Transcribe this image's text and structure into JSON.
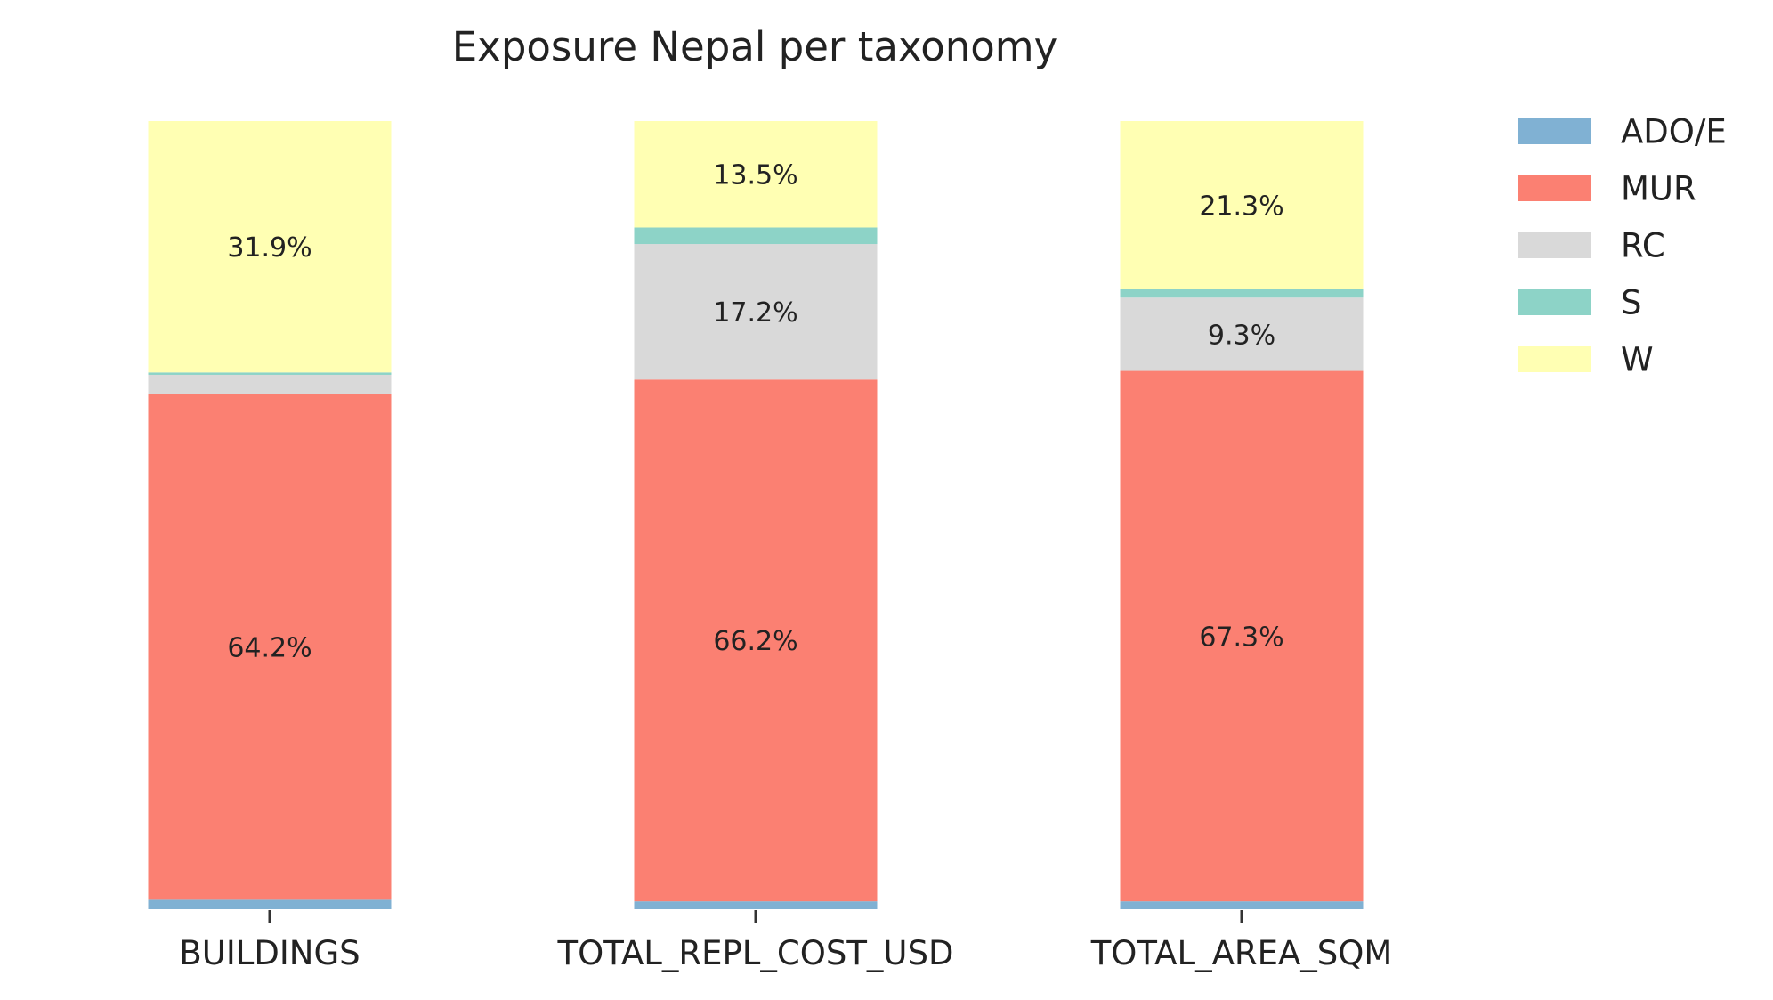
{
  "chart_data": {
    "type": "bar",
    "stacked": true,
    "normalized": true,
    "title": "Exposure Nepal per taxonomy",
    "xlabel": "",
    "ylabel": "",
    "ylim": [
      0,
      100
    ],
    "grid": false,
    "legend_position": "top-right",
    "categories": [
      "BUILDINGS",
      "TOTAL_REPL_COST_USD",
      "TOTAL_AREA_SQM"
    ],
    "series": [
      {
        "name": "ADO/E",
        "color": "#80b1d3",
        "values": [
          1.2,
          1.0,
          1.0
        ],
        "labels": [
          "",
          "",
          ""
        ]
      },
      {
        "name": "MUR",
        "color": "#fb8072",
        "values": [
          64.2,
          66.2,
          67.3
        ],
        "labels": [
          "64.2%",
          "66.2%",
          "67.3%"
        ]
      },
      {
        "name": "RC",
        "color": "#d9d9d9",
        "values": [
          2.4,
          17.2,
          9.3
        ],
        "labels": [
          "",
          "17.2%",
          "9.3%"
        ]
      },
      {
        "name": "S",
        "color": "#8dd3c7",
        "values": [
          0.3,
          2.1,
          1.1
        ],
        "labels": [
          "",
          "",
          ""
        ]
      },
      {
        "name": "W",
        "color": "#ffffb3",
        "values": [
          31.9,
          13.5,
          21.3
        ],
        "labels": [
          "31.9%",
          "13.5%",
          "21.3%"
        ]
      }
    ]
  }
}
